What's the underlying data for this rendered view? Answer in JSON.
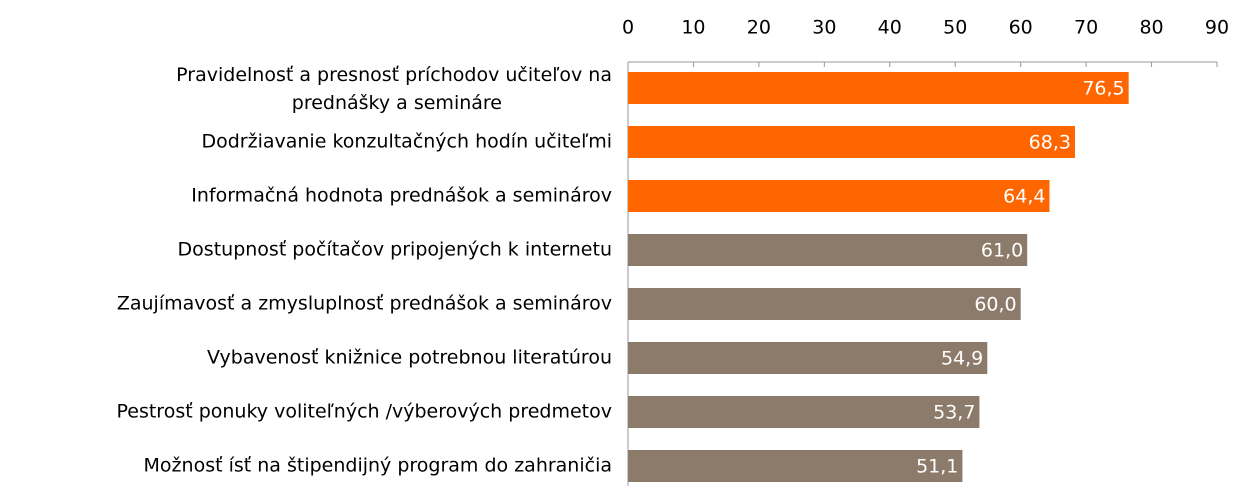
{
  "chart_data": {
    "type": "bar",
    "orientation": "horizontal",
    "categories": [
      "Pravidelnosť a presnosť príchodov učiteľov  na\nprednášky a semináre",
      "Dodržiavanie konzultačných hodín učiteľmi",
      "Informačná hodnota prednášok a seminárov",
      "Dostupnosť počítačov pripojených k internetu",
      "Zaujímavosť a zmysluplnosť prednášok a seminárov",
      "Vybavenosť knižnice potrebnou literatúrou",
      "Pestrosť ponuky voliteľných /výberových predmetov",
      "Možnosť ísť na štipendijný program do zahraničia"
    ],
    "values": [
      76.5,
      68.3,
      64.4,
      61.0,
      60.0,
      54.9,
      53.7,
      51.1
    ],
    "value_labels": [
      "76,5",
      "68,3",
      "64,4",
      "61,0",
      "60,0",
      "54,9",
      "53,7",
      "51,1"
    ],
    "colors": [
      "#ff6600",
      "#ff6600",
      "#ff6600",
      "#8c7b6b",
      "#8c7b6b",
      "#8c7b6b",
      "#8c7b6b",
      "#8c7b6b"
    ],
    "xlim": [
      0,
      90
    ],
    "xticks": [
      0,
      10,
      20,
      30,
      40,
      50,
      60,
      70,
      80,
      90
    ],
    "axis_position": "top",
    "grid": false
  }
}
